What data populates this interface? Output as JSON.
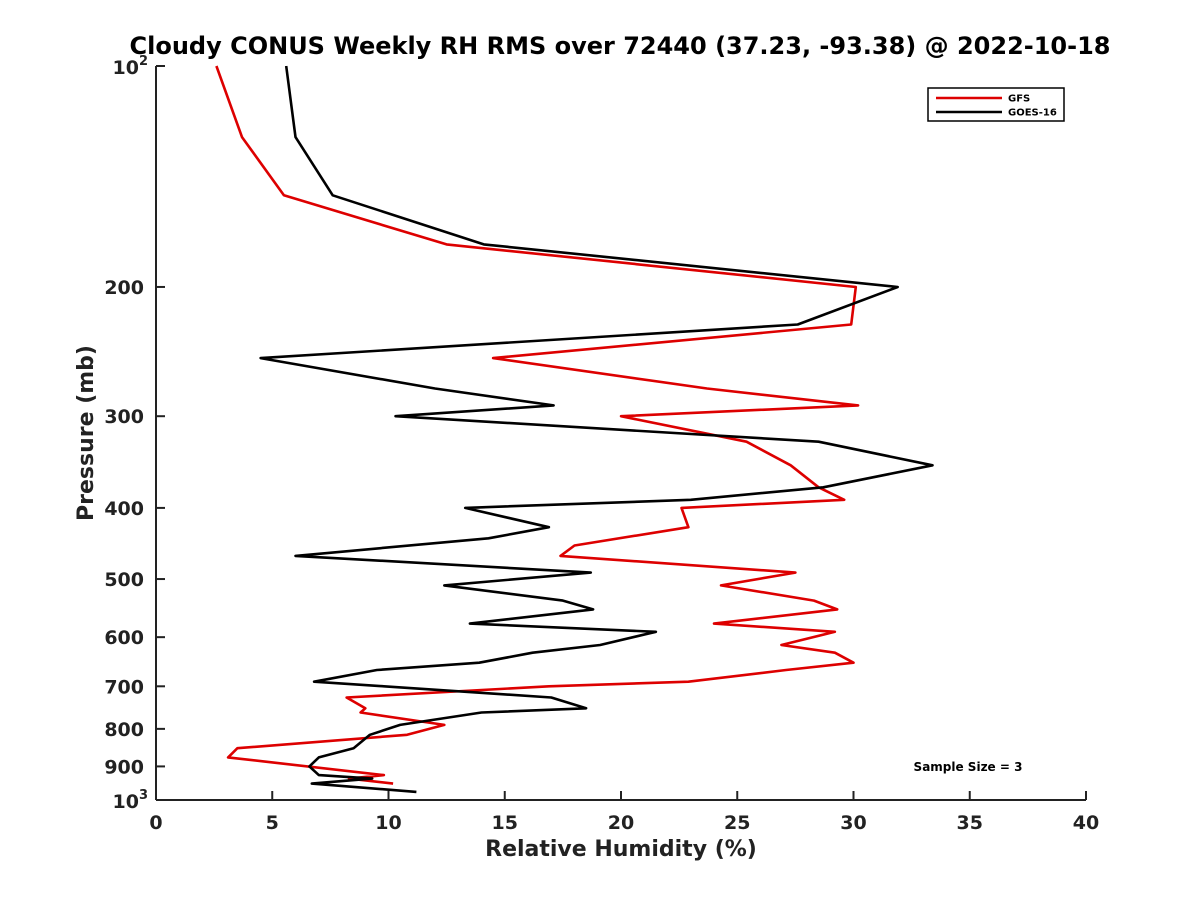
{
  "chart_data": {
    "type": "line",
    "title": "Cloudy CONUS Weekly RH RMS over 72440 (37.23, -93.38) @ 2022-10-18",
    "xlabel": "Relative Humidity (%)",
    "ylabel": "Pressure (mb)",
    "xlim": [
      0,
      40
    ],
    "ylim": [
      100,
      1000
    ],
    "y_scale": "log",
    "y_reversed": true,
    "grid": false,
    "legend_position": "top-right",
    "x_ticks": [
      0,
      5,
      10,
      15,
      20,
      25,
      30,
      35,
      40
    ],
    "x_tick_labels": [
      "0",
      "5",
      "10",
      "15",
      "20",
      "25",
      "30",
      "35",
      "40"
    ],
    "y_ticks": [
      200,
      300,
      400,
      500,
      600,
      700,
      800,
      900
    ],
    "y_tick_labels": [
      "200",
      "300",
      "400",
      "500",
      "600",
      "700",
      "800",
      "900"
    ],
    "y_exp_labels": [
      {
        "value": 100,
        "base": "10",
        "exp": "2"
      },
      {
        "value": 1000,
        "base": "10",
        "exp": "3"
      }
    ],
    "annotation": "Sample Size = 3",
    "series": [
      {
        "name": "GFS",
        "color": "#dd0000",
        "points": [
          [
            2.6,
            100
          ],
          [
            3.7,
            125
          ],
          [
            5.5,
            150
          ],
          [
            12.5,
            175
          ],
          [
            30.1,
            200
          ],
          [
            29.9,
            225
          ],
          [
            14.5,
            250
          ],
          [
            23.7,
            275
          ],
          [
            30.2,
            290
          ],
          [
            20.0,
            300
          ],
          [
            25.4,
            325
          ],
          [
            27.3,
            350
          ],
          [
            28.5,
            375
          ],
          [
            29.6,
            390
          ],
          [
            22.6,
            400
          ],
          [
            22.9,
            425
          ],
          [
            18.0,
            450
          ],
          [
            17.4,
            465
          ],
          [
            27.5,
            490
          ],
          [
            24.3,
            510
          ],
          [
            28.3,
            535
          ],
          [
            29.3,
            550
          ],
          [
            24.0,
            575
          ],
          [
            29.2,
            590
          ],
          [
            26.9,
            615
          ],
          [
            29.2,
            630
          ],
          [
            30.0,
            650
          ],
          [
            27.1,
            665
          ],
          [
            22.9,
            690
          ],
          [
            16.9,
            700
          ],
          [
            8.2,
            725
          ],
          [
            9.0,
            750
          ],
          [
            8.8,
            760
          ],
          [
            12.4,
            790
          ],
          [
            10.8,
            815
          ],
          [
            3.5,
            850
          ],
          [
            3.1,
            875
          ],
          [
            9.8,
            925
          ],
          [
            8.3,
            935
          ],
          [
            10.2,
            950
          ]
        ]
      },
      {
        "name": "GOES-16",
        "color": "#000000",
        "points": [
          [
            5.6,
            100
          ],
          [
            6.0,
            125
          ],
          [
            7.6,
            150
          ],
          [
            14.1,
            175
          ],
          [
            31.9,
            200
          ],
          [
            27.6,
            225
          ],
          [
            4.5,
            250
          ],
          [
            12.0,
            275
          ],
          [
            17.1,
            290
          ],
          [
            10.3,
            300
          ],
          [
            28.5,
            325
          ],
          [
            33.4,
            350
          ],
          [
            28.7,
            375
          ],
          [
            23.0,
            390
          ],
          [
            13.3,
            400
          ],
          [
            16.9,
            425
          ],
          [
            14.3,
            440
          ],
          [
            6.0,
            465
          ],
          [
            18.7,
            490
          ],
          [
            12.4,
            510
          ],
          [
            17.5,
            535
          ],
          [
            18.8,
            550
          ],
          [
            13.5,
            575
          ],
          [
            21.5,
            590
          ],
          [
            19.1,
            615
          ],
          [
            16.2,
            630
          ],
          [
            13.9,
            650
          ],
          [
            9.5,
            665
          ],
          [
            6.8,
            690
          ],
          [
            9.8,
            700
          ],
          [
            17.0,
            725
          ],
          [
            18.5,
            750
          ],
          [
            14.0,
            760
          ],
          [
            10.5,
            790
          ],
          [
            9.2,
            815
          ],
          [
            8.5,
            850
          ],
          [
            7.0,
            875
          ],
          [
            6.6,
            900
          ],
          [
            7.0,
            925
          ],
          [
            9.3,
            935
          ],
          [
            6.7,
            950
          ],
          [
            11.2,
            975
          ]
        ]
      }
    ]
  }
}
